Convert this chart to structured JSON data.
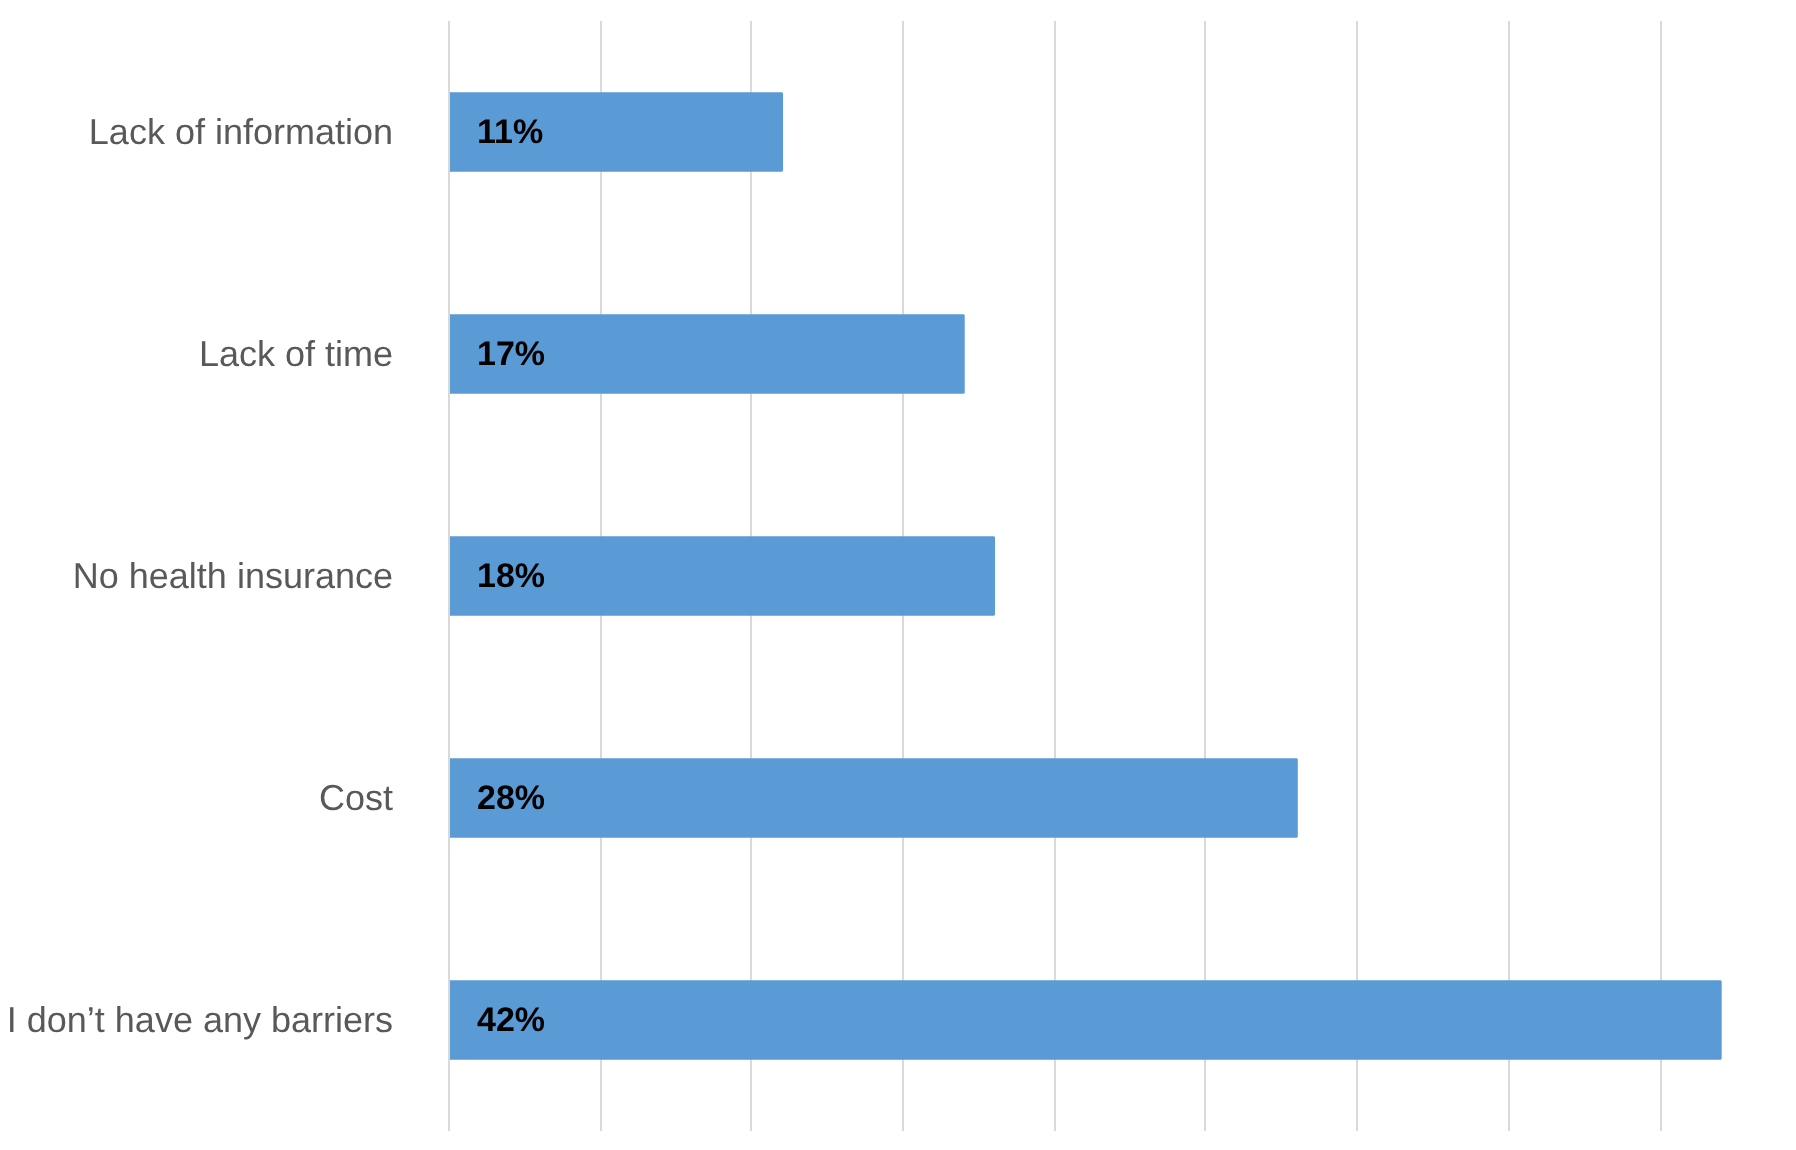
{
  "chart_data": {
    "type": "bar",
    "orientation": "horizontal",
    "categories": [
      "Lack of information",
      "Lack of time",
      "No health insurance",
      "Cost",
      "I don’t have any barriers"
    ],
    "values": [
      11,
      17,
      18,
      28,
      42
    ],
    "color": "#5b9bd5",
    "value_labels": [
      "11%",
      "17%",
      "18%",
      "28%",
      "42%"
    ],
    "grid": "x",
    "tick_labels": "y"
  }
}
